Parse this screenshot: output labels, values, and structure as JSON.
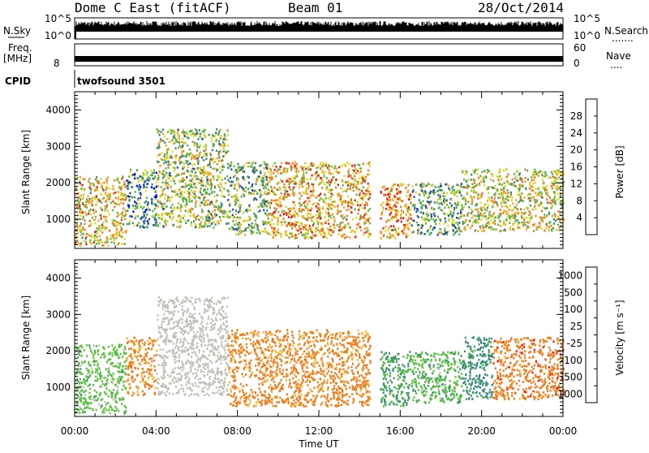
{
  "header": {
    "station": "Dome C East (fitACF)",
    "beam": "Beam 01",
    "date": "28/Oct/2014"
  },
  "top_panels": {
    "nsky_label": "N.Sky",
    "nsky_tick_top": "10^5",
    "nsky_tick_bottom": "10^0",
    "nsearch_label": "N.Search",
    "nsearch_tick_top": "10^5",
    "nsearch_tick_bottom": "10^0",
    "freq_label": "Freq.",
    "freq_unit": "[MHz]",
    "freq_tick": "8",
    "nave_label": "Nave",
    "nave_tick_top": "60",
    "nave_tick_bottom": "0",
    "cpid_label": "CPID",
    "cpid_value": "twofsound 3501"
  },
  "chart_data": [
    {
      "type": "heatmap",
      "name": "power",
      "ylabel": "Slant Range [km]",
      "yticks": [
        "1000",
        "2000",
        "3000",
        "4000"
      ],
      "ylim": [
        200,
        4500
      ],
      "xlim": [
        0,
        24
      ],
      "colorbar_label": "Power [dB]",
      "colorbar_ticks": [
        "4",
        "8",
        "12",
        "16",
        "20",
        "24",
        "28"
      ],
      "colorbar_range": [
        0,
        32
      ],
      "colors": [
        "#0000ff",
        "#264ea2",
        "#3a8b75",
        "#58b845",
        "#d8da1e",
        "#f6a21c",
        "#f2731d",
        "#e11a1a"
      ],
      "regions": [
        {
          "t": [
            0.0,
            2.5
          ],
          "r": [
            300,
            2200
          ],
          "v": 20
        },
        {
          "t": [
            2.5,
            4.0
          ],
          "r": [
            800,
            2400
          ],
          "v": 10
        },
        {
          "t": [
            4.0,
            7.5
          ],
          "r": [
            800,
            3500
          ],
          "v": 16
        },
        {
          "t": [
            7.5,
            9.5
          ],
          "r": [
            600,
            2600
          ],
          "v": 14
        },
        {
          "t": [
            9.5,
            14.5
          ],
          "r": [
            500,
            2600
          ],
          "v": 22
        },
        {
          "t": [
            15.0,
            16.5
          ],
          "r": [
            500,
            2000
          ],
          "v": 24
        },
        {
          "t": [
            16.5,
            19.0
          ],
          "r": [
            600,
            2000
          ],
          "v": 12
        },
        {
          "t": [
            19.0,
            24.0
          ],
          "r": [
            700,
            2400
          ],
          "v": 18
        }
      ]
    },
    {
      "type": "heatmap",
      "name": "velocity",
      "ylabel": "Slant Range [km]",
      "yticks": [
        "1000",
        "2000",
        "3000",
        "4000"
      ],
      "ylim": [
        200,
        4500
      ],
      "xlim": [
        0,
        24
      ],
      "colorbar_label": "Velocity [m s⁻¹]",
      "colorbar_ticks": [
        "1000",
        "500",
        "100",
        "25",
        "-25",
        "-100",
        "-500",
        "-1000"
      ],
      "colors": [
        "#2f4fc0",
        "#2b7a8a",
        "#3a9a64",
        "#58c23a",
        "#c0c0b8",
        "#f2b830",
        "#f07a1a",
        "#ff1010"
      ],
      "regions": [
        {
          "t": [
            0.0,
            2.5
          ],
          "r": [
            300,
            2200
          ],
          "v": 60
        },
        {
          "t": [
            2.5,
            4.0
          ],
          "r": [
            800,
            2400
          ],
          "v": -150
        },
        {
          "t": [
            4.0,
            7.5
          ],
          "r": [
            800,
            3500
          ],
          "v": 0
        },
        {
          "t": [
            7.5,
            14.5
          ],
          "r": [
            500,
            2600
          ],
          "v": -200
        },
        {
          "t": [
            15.0,
            16.5
          ],
          "r": [
            500,
            2000
          ],
          "v": 150
        },
        {
          "t": [
            16.5,
            19.0
          ],
          "r": [
            600,
            2000
          ],
          "v": 80
        },
        {
          "t": [
            19.0,
            20.5
          ],
          "r": [
            700,
            2400
          ],
          "v": 400
        },
        {
          "t": [
            20.5,
            24.0
          ],
          "r": [
            700,
            2400
          ],
          "v": -300
        }
      ]
    }
  ],
  "x_axis": {
    "ticks": [
      "00:00",
      "04:00",
      "08:00",
      "12:00",
      "16:00",
      "20:00",
      "00:00"
    ],
    "label": "Time UT"
  }
}
